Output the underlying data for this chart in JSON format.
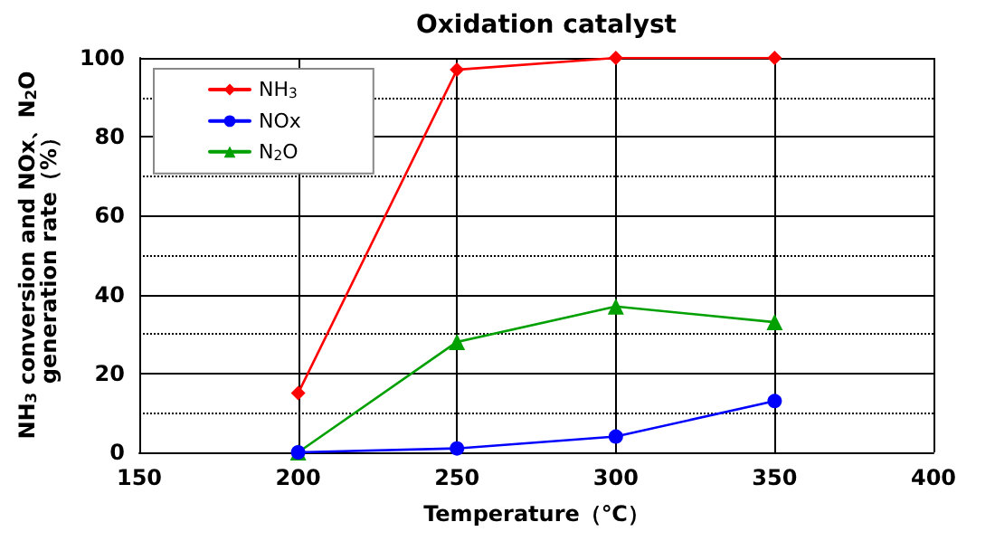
{
  "chart_data": {
    "type": "line",
    "title": "Oxidation catalyst",
    "xlabel": "Temperature（℃）",
    "ylabel": "NH$_{3}$ conversion and NOx、N$_{2}$O\ngeneration rate（%）",
    "x": [
      200,
      250,
      300,
      350
    ],
    "series": [
      {
        "name": "NH$_{3}$",
        "color": "#ff0000",
        "marker": "diamond",
        "values": [
          15,
          97,
          100,
          100
        ]
      },
      {
        "name": "NOx",
        "color": "#0000ff",
        "marker": "circle",
        "values": [
          0,
          1,
          4,
          13
        ]
      },
      {
        "name": "N$_{2}$O",
        "color": "#00a000",
        "marker": "triangle",
        "values": [
          0,
          28,
          37,
          33
        ]
      }
    ],
    "xlim": [
      150,
      400
    ],
    "xticks": [
      150,
      200,
      250,
      300,
      350,
      400
    ],
    "ylim": [
      0,
      100
    ],
    "yticks": [
      0,
      20,
      40,
      60,
      80,
      100
    ],
    "grid": true,
    "legend": "top left",
    "line_style": "solid"
  }
}
